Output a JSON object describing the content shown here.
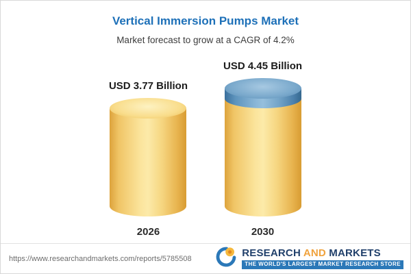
{
  "header": {
    "title": "Vertical Immersion Pumps Market",
    "subtitle": "Market forecast to grow at a CAGR of 4.2%"
  },
  "chart_data": {
    "type": "bar",
    "title": "Vertical Immersion Pumps Market",
    "subtitle": "Market forecast to grow at a CAGR of 4.2%",
    "categories": [
      "2026",
      "2030"
    ],
    "values": [
      3.77,
      4.45
    ],
    "value_labels": [
      "USD 3.77 Billion",
      "USD 4.45 Billion"
    ],
    "unit": "USD Billion",
    "cagr_pct": 4.2,
    "ylim": [
      0,
      4.45
    ],
    "legend": "off",
    "grid": "off",
    "colors": {
      "bar_base": "#f5d67f",
      "growth_cap": "#5e94bd",
      "title_accent": "#1d70b8"
    },
    "notes": "2030 bar shows growth segment (4.45 - 3.77 = 0.68) as blue cap on top of base cylinder"
  },
  "footer": {
    "url": "https://www.researchandmarkets.com/reports/5785508",
    "logo": {
      "research": "RESEARCH",
      "and": "AND",
      "markets": "MARKETS",
      "tagline": "THE WORLD'S LARGEST MARKET RESEARCH STORE"
    }
  }
}
